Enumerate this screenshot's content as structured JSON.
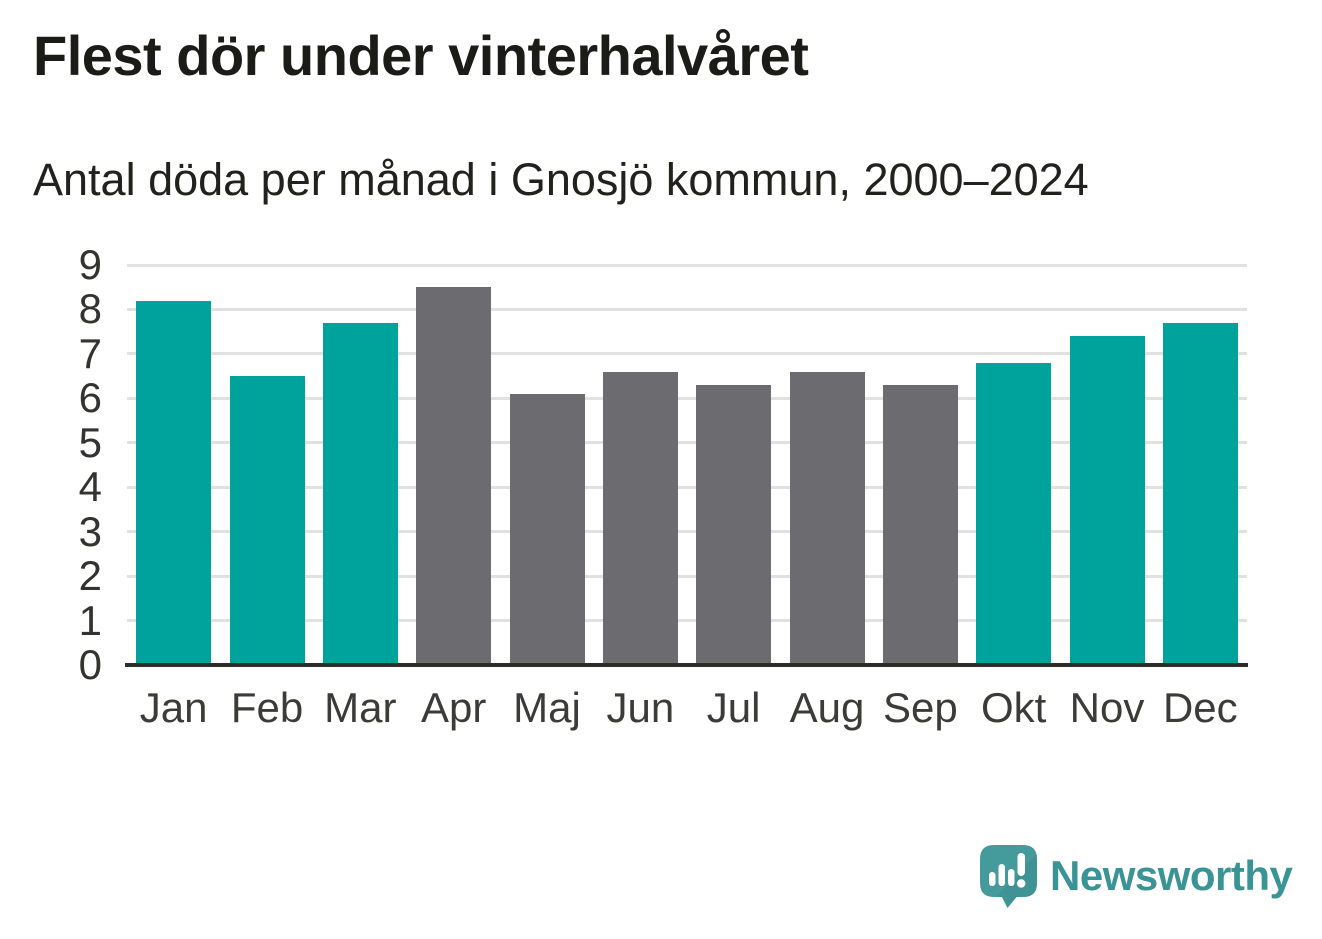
{
  "header": {
    "title": "Flest dör under vinterhalvåret",
    "subtitle": "Antal döda per månad i Gnosjö kommun, 2000–2024"
  },
  "chart_data": {
    "type": "bar",
    "title": "Flest dör under vinterhalvåret",
    "subtitle": "Antal döda per månad i Gnosjö kommun, 2000–2024",
    "categories": [
      "Jan",
      "Feb",
      "Mar",
      "Apr",
      "Maj",
      "Jun",
      "Jul",
      "Aug",
      "Sep",
      "Okt",
      "Nov",
      "Dec"
    ],
    "values": [
      8.2,
      6.5,
      7.7,
      8.5,
      6.1,
      6.6,
      6.3,
      6.6,
      6.3,
      6.8,
      7.4,
      7.7
    ],
    "bar_colors": [
      "teal",
      "teal",
      "teal",
      "gray",
      "gray",
      "gray",
      "gray",
      "gray",
      "gray",
      "teal",
      "teal",
      "teal"
    ],
    "colors": {
      "teal": "#00a39b",
      "gray": "#6c6b70"
    },
    "ylabel": "",
    "xlabel": "",
    "ylim": [
      0,
      9
    ],
    "yticks": [
      0,
      1,
      2,
      3,
      4,
      5,
      6,
      7,
      8,
      9
    ],
    "grid": true,
    "gridline_color": "#e1e1e1",
    "axis_line_color": "#2d2d2c",
    "legend": "none"
  },
  "branding": {
    "logo_text": "Newsworthy",
    "logo_color": "#3a9496",
    "logo_icon": "newsworthy-speech-bubble-bar-chart-icon"
  }
}
